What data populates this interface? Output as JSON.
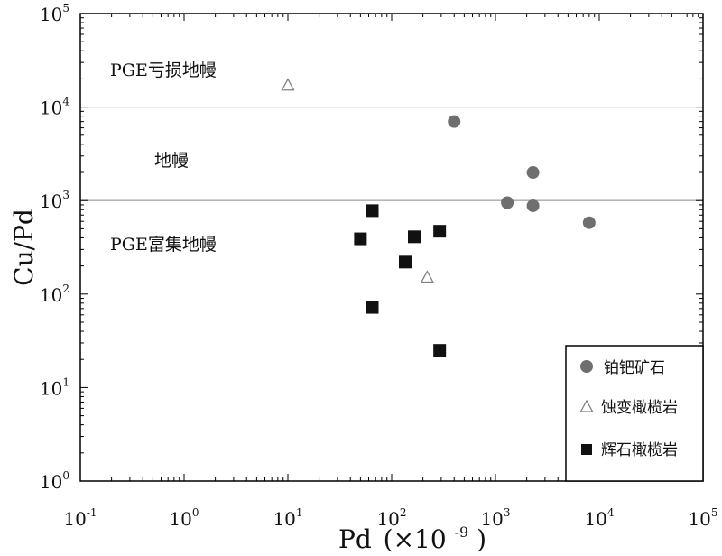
{
  "chart_data": {
    "type": "scatter",
    "xlabel": "Pd (×10⁻⁹)",
    "xlabel_base": "Pd",
    "xlabel_unit_prefix": "(×10",
    "xlabel_unit_exp": "-9",
    "xlabel_unit_suffix": ")",
    "ylabel": "Cu/Pd",
    "xscale": "log",
    "yscale": "log",
    "xlim": [
      0.1,
      100000
    ],
    "ylim": [
      1,
      100000
    ],
    "x_ticks": [
      {
        "value": 0.1,
        "base": "10",
        "exp": "-1"
      },
      {
        "value": 1,
        "base": "10",
        "exp": "0"
      },
      {
        "value": 10,
        "base": "10",
        "exp": "1"
      },
      {
        "value": 100,
        "base": "10",
        "exp": "2"
      },
      {
        "value": 1000,
        "base": "10",
        "exp": "3"
      },
      {
        "value": 10000,
        "base": "10",
        "exp": "4"
      },
      {
        "value": 100000,
        "base": "10",
        "exp": "5"
      }
    ],
    "y_ticks": [
      {
        "value": 1,
        "base": "10",
        "exp": "0"
      },
      {
        "value": 10,
        "base": "10",
        "exp": "1"
      },
      {
        "value": 100,
        "base": "10",
        "exp": "2"
      },
      {
        "value": 1000,
        "base": "10",
        "exp": "3"
      },
      {
        "value": 10000,
        "base": "10",
        "exp": "4"
      },
      {
        "value": 100000,
        "base": "10",
        "exp": "5"
      }
    ],
    "reference_lines": [
      {
        "y": 10000
      },
      {
        "y": 1000
      }
    ],
    "region_labels": [
      {
        "text": "PGE亏损地幔"
      },
      {
        "text": "地幔"
      },
      {
        "text": "PGE富集地幔"
      }
    ],
    "series": [
      {
        "name": "铂钯矿石",
        "marker": "circle",
        "color": "#6f6f6f",
        "points": [
          {
            "x": 400,
            "y": 7000
          },
          {
            "x": 1300,
            "y": 950
          },
          {
            "x": 2300,
            "y": 2000
          },
          {
            "x": 2300,
            "y": 880
          },
          {
            "x": 8000,
            "y": 580
          }
        ]
      },
      {
        "name": "蚀变橄榄岩",
        "marker": "triangle-open",
        "color": "#808080",
        "points": [
          {
            "x": 10,
            "y": 17000
          },
          {
            "x": 220,
            "y": 150
          }
        ]
      },
      {
        "name": "辉石橄榄岩",
        "marker": "square",
        "color": "#111111",
        "points": [
          {
            "x": 65,
            "y": 780
          },
          {
            "x": 50,
            "y": 390
          },
          {
            "x": 165,
            "y": 410
          },
          {
            "x": 290,
            "y": 470
          },
          {
            "x": 135,
            "y": 220
          },
          {
            "x": 65,
            "y": 72
          },
          {
            "x": 290,
            "y": 25
          }
        ]
      }
    ],
    "legend_position": "bottom-right"
  }
}
